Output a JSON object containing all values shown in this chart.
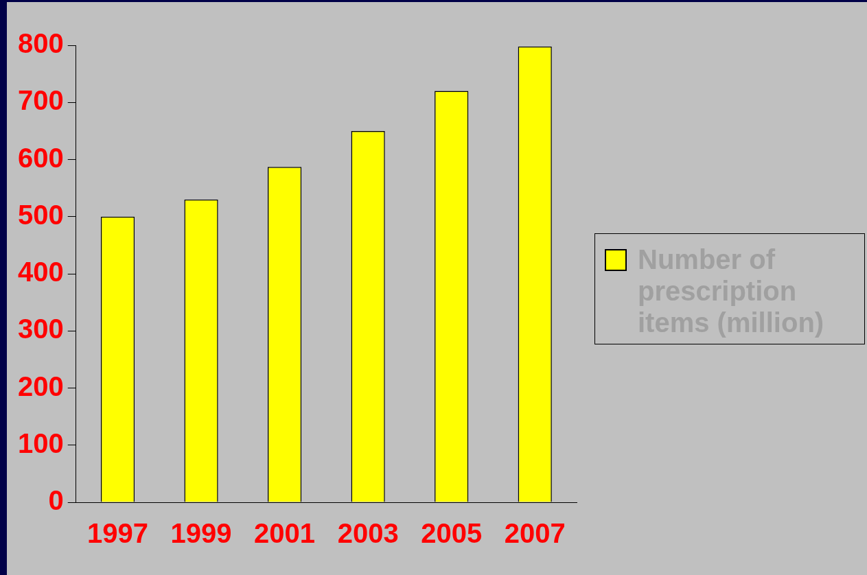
{
  "chart_data": {
    "type": "bar",
    "categories": [
      "1997",
      "1999",
      "2001",
      "2003",
      "2005",
      "2007"
    ],
    "series": [
      {
        "name": "Number of prescription items (million)",
        "color": "#ffff00",
        "values": [
          500,
          530,
          587,
          650,
          720,
          798
        ]
      }
    ],
    "ylim": [
      0,
      800
    ],
    "yticks": [
      0,
      100,
      200,
      300,
      400,
      500,
      600,
      700,
      800
    ],
    "grid": false,
    "legend": "right"
  }
}
